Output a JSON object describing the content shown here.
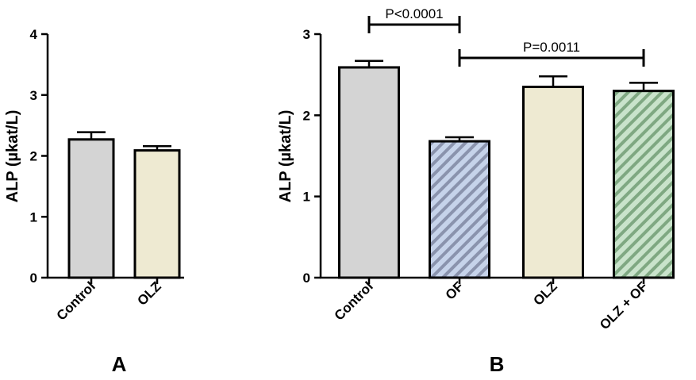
{
  "chart_data": [
    {
      "type": "bar",
      "panel_label": "A",
      "ylabel": "ALP (µkat/L)",
      "ylim": [
        0,
        4
      ],
      "yticks": [
        "0",
        "1",
        "2",
        "3",
        "4"
      ],
      "categories": [
        "Control",
        "OLZ"
      ],
      "values": [
        2.27,
        2.09
      ],
      "errors": [
        0.12,
        0.07
      ],
      "bar_colors": [
        "#d4d4d4",
        "#eeead2"
      ],
      "patterns": [
        "none",
        "none"
      ]
    },
    {
      "type": "bar",
      "panel_label": "B",
      "ylabel": "ALP (µkat/L)",
      "ylim": [
        0,
        3
      ],
      "yticks": [
        "0",
        "1",
        "2",
        "3"
      ],
      "categories": [
        "Control",
        "OF",
        "OLZ",
        "OLZ + OF"
      ],
      "values": [
        2.59,
        1.68,
        2.35,
        2.3
      ],
      "errors": [
        0.08,
        0.05,
        0.13,
        0.1
      ],
      "bar_colors": [
        "#d4d4d4",
        "#c6d3ea",
        "#eeead2",
        "#c9e3cb"
      ],
      "patterns": [
        "none",
        "diagonal-stripes",
        "none",
        "diagonal-stripes"
      ],
      "stripe_colors": [
        "",
        "#8a93ad",
        "",
        "#7fa882"
      ],
      "annotations": [
        {
          "text": "P<0.0001",
          "from": "Control",
          "to": "OF"
        },
        {
          "text": "P=0.0011",
          "from": "OF",
          "to": "OLZ + OF"
        }
      ]
    }
  ]
}
